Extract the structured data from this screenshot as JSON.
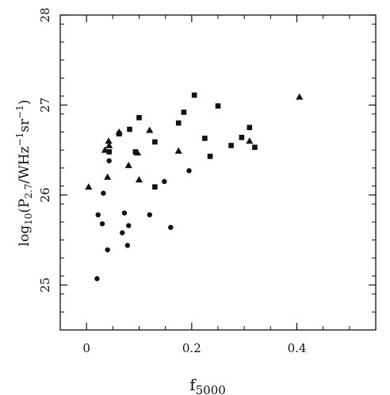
{
  "chart_data": {
    "type": "scatter",
    "title": "",
    "xlabel": {
      "main": "f",
      "sub": "5000"
    },
    "ylabel": {
      "prefix": "log",
      "sub1": "10",
      "paren_open": "(P",
      "sub2": "2.7",
      "slash": "/WHz",
      "sup1": "−1",
      "sr": "sr",
      "sup2": "−1",
      "paren_close": ")"
    },
    "xlim": [
      -0.05,
      0.55
    ],
    "ylim": [
      24.5,
      28
    ],
    "xticks": [
      {
        "value": 0,
        "label": "0"
      },
      {
        "value": 0.2,
        "label": "0.2"
      },
      {
        "value": 0.4,
        "label": "0.4"
      }
    ],
    "yticks": [
      {
        "value": 25,
        "label": "25"
      },
      {
        "value": 26,
        "label": "26"
      },
      {
        "value": 27,
        "label": "27"
      },
      {
        "value": 28,
        "label": "28"
      }
    ],
    "grid": false,
    "legend": "none",
    "series": [
      {
        "marker": "triangle",
        "points": [
          [
            0.004,
            26.09
          ],
          [
            0.035,
            26.5
          ],
          [
            0.042,
            26.6
          ],
          [
            0.043,
            26.55
          ],
          [
            0.04,
            26.2
          ],
          [
            0.062,
            26.7
          ],
          [
            0.08,
            26.33
          ],
          [
            0.097,
            26.47
          ],
          [
            0.1,
            26.17
          ],
          [
            0.12,
            26.72
          ],
          [
            0.175,
            26.49
          ],
          [
            0.31,
            26.6
          ],
          [
            0.405,
            27.09
          ]
        ]
      },
      {
        "marker": "square",
        "points": [
          [
            0.043,
            26.48
          ],
          [
            0.062,
            26.68
          ],
          [
            0.082,
            26.73
          ],
          [
            0.093,
            26.48
          ],
          [
            0.1,
            26.86
          ],
          [
            0.13,
            26.59
          ],
          [
            0.13,
            26.09
          ],
          [
            0.175,
            26.8
          ],
          [
            0.185,
            26.92
          ],
          [
            0.205,
            27.11
          ],
          [
            0.225,
            26.63
          ],
          [
            0.235,
            26.43
          ],
          [
            0.25,
            26.99
          ],
          [
            0.275,
            26.55
          ],
          [
            0.295,
            26.64
          ],
          [
            0.31,
            26.75
          ],
          [
            0.32,
            26.53
          ]
        ]
      },
      {
        "marker": "circle",
        "points": [
          [
            0.02,
            25.07
          ],
          [
            0.022,
            25.78
          ],
          [
            0.03,
            25.68
          ],
          [
            0.032,
            26.02
          ],
          [
            0.04,
            25.39
          ],
          [
            0.043,
            26.38
          ],
          [
            0.068,
            25.58
          ],
          [
            0.072,
            25.8
          ],
          [
            0.078,
            25.44
          ],
          [
            0.08,
            25.66
          ],
          [
            0.12,
            25.78
          ],
          [
            0.148,
            26.15
          ],
          [
            0.16,
            25.64
          ],
          [
            0.195,
            26.27
          ]
        ]
      }
    ]
  }
}
